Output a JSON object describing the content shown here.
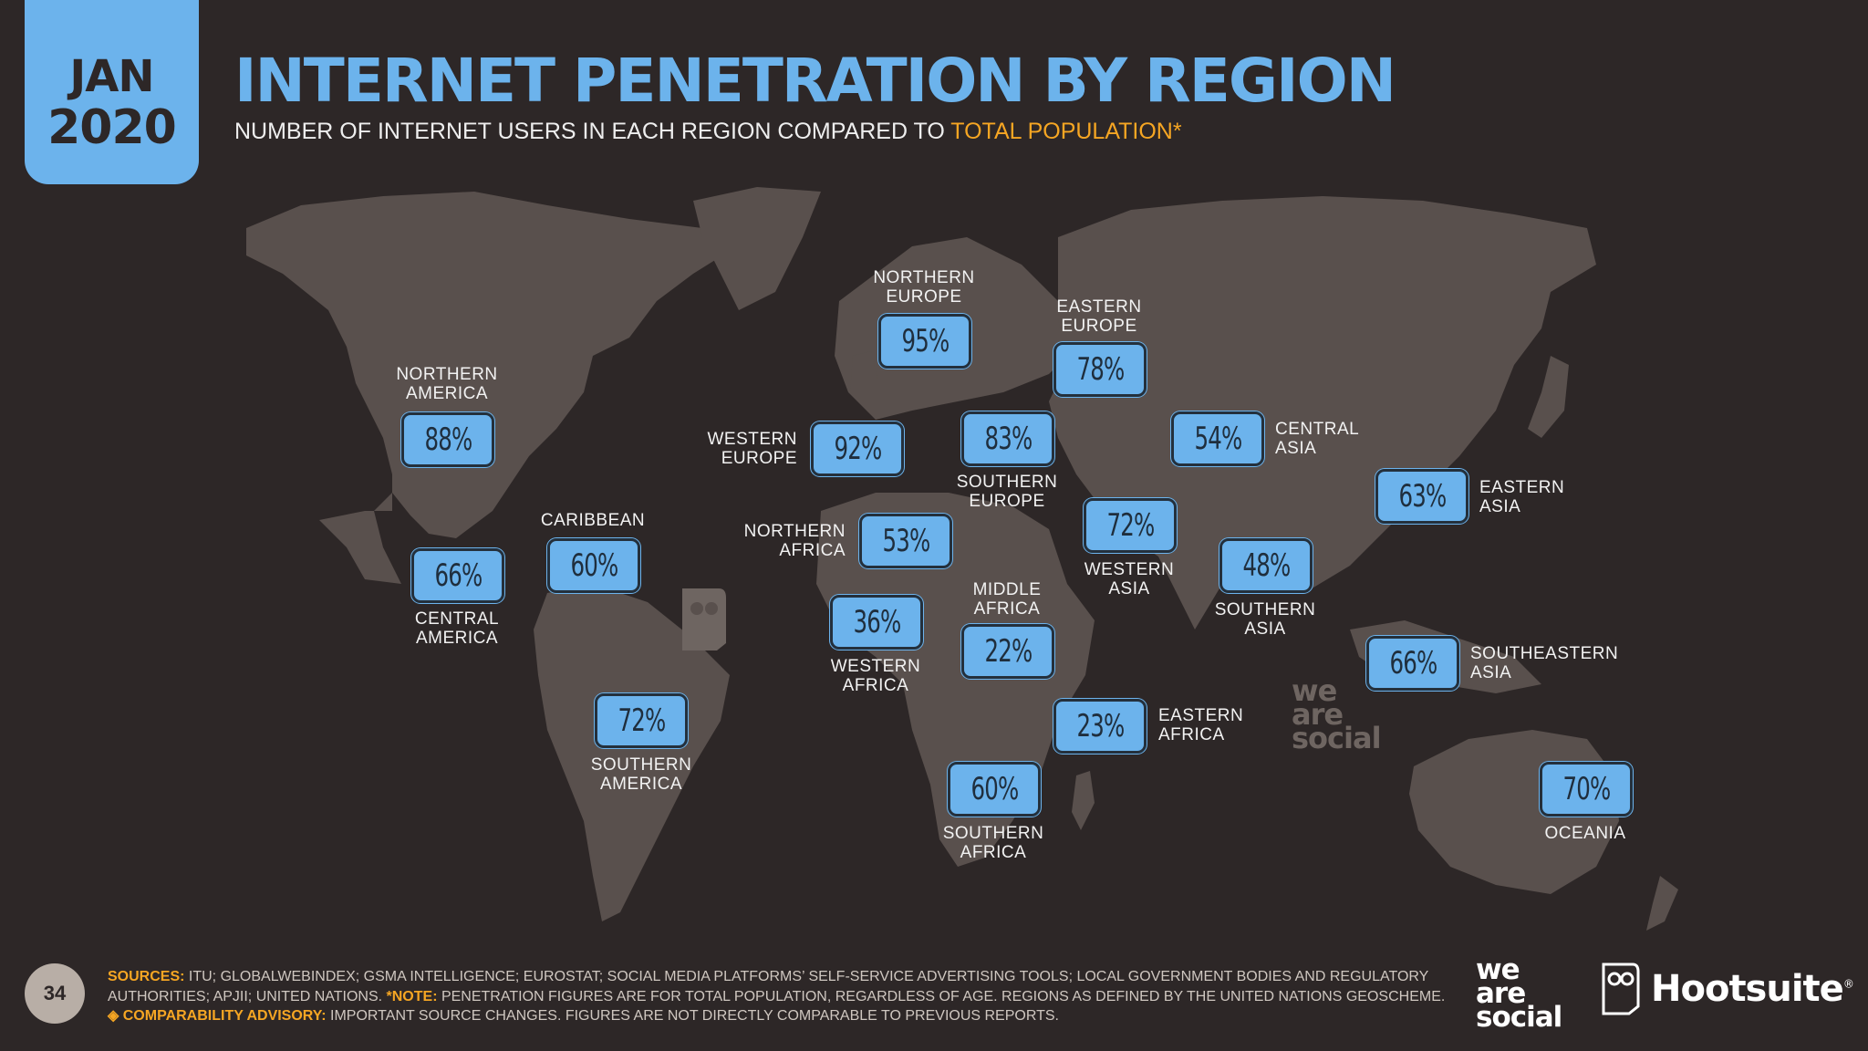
{
  "header": {
    "date_month": "JAN",
    "date_year": "2020",
    "title": "INTERNET PENETRATION BY REGION",
    "subtitle_main": "NUMBER OF INTERNET USERS IN EACH REGION COMPARED TO ",
    "subtitle_highlight": "TOTAL POPULATION",
    "subtitle_mark": "*"
  },
  "colors": {
    "background": "#2d2727",
    "land": "#59504d",
    "accent_blue": "#6cb3ec",
    "highlight_orange": "#f6a623"
  },
  "chart_data": {
    "type": "map",
    "value_unit": "%",
    "regions": [
      {
        "name": "NORTHERN AMERICA",
        "value": 88
      },
      {
        "name": "CENTRAL AMERICA",
        "value": 66
      },
      {
        "name": "CARIBBEAN",
        "value": 60
      },
      {
        "name": "SOUTHERN AMERICA",
        "value": 72
      },
      {
        "name": "NORTHERN EUROPE",
        "value": 95
      },
      {
        "name": "WESTERN EUROPE",
        "value": 92
      },
      {
        "name": "SOUTHERN EUROPE",
        "value": 83
      },
      {
        "name": "EASTERN EUROPE",
        "value": 78
      },
      {
        "name": "NORTHERN AFRICA",
        "value": 53
      },
      {
        "name": "WESTERN AFRICA",
        "value": 36
      },
      {
        "name": "MIDDLE AFRICA",
        "value": 22
      },
      {
        "name": "EASTERN AFRICA",
        "value": 23
      },
      {
        "name": "SOUTHERN AFRICA",
        "value": 60
      },
      {
        "name": "WESTERN ASIA",
        "value": 72
      },
      {
        "name": "CENTRAL ASIA",
        "value": 54
      },
      {
        "name": "SOUTHERN ASIA",
        "value": 48
      },
      {
        "name": "EASTERN ASIA",
        "value": 63
      },
      {
        "name": "SOUTHEASTERN ASIA",
        "value": 66
      },
      {
        "name": "OCEANIA",
        "value": 70
      }
    ]
  },
  "footer": {
    "page_number": "34",
    "sources_label": "SOURCES:",
    "sources_text": " ITU; GLOBALWEBINDEX; GSMA INTELLIGENCE; EUROSTAT; SOCIAL MEDIA PLATFORMS’ SELF-SERVICE ADVERTISING TOOLS; LOCAL GOVERNMENT BODIES AND REGULATORY",
    "sources_text2": "AUTHORITIES; APJII; UNITED NATIONS. ",
    "note_label": "*NOTE:",
    "note_text": " PENETRATION FIGURES ARE FOR TOTAL POPULATION, REGARDLESS OF AGE. REGIONS AS DEFINED BY THE UNITED NATIONS GEOSCHEME.",
    "advisory_label": "◈ COMPARABILITY ADVISORY:",
    "advisory_text": " IMPORTANT SOURCE CHANGES. FIGURES ARE NOT DIRECTLY COMPARABLE TO PREVIOUS REPORTS."
  },
  "logos": {
    "we": "we",
    "are": "are",
    "social": "social",
    "hootsuite": "Hootsuite",
    "registered": "®"
  }
}
